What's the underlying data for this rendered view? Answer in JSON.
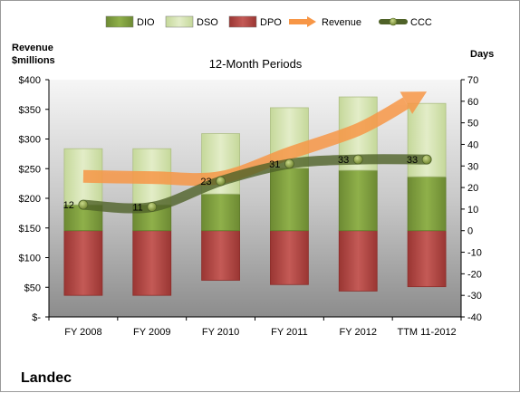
{
  "chart_data": {
    "type": "bar",
    "title": "12-Month Periods",
    "company": "Landec",
    "left_axis_label": [
      "Revenue",
      "$millions"
    ],
    "right_axis_label": "Days",
    "categories": [
      "FY 2008",
      "FY 2009",
      "FY 2010",
      "FY 2011",
      "FY 2012",
      "TTM 11-2012"
    ],
    "left_axis": {
      "min": 0,
      "max": 400,
      "step": 50,
      "ticks": [
        "$-",
        "$50",
        "$100",
        "$150",
        "$200",
        "$250",
        "$300",
        "$350",
        "$400"
      ]
    },
    "right_axis": {
      "min": -40,
      "max": 70,
      "step": 10,
      "ticks": [
        "-40",
        "-30",
        "-20",
        "-10",
        "0",
        "10",
        "20",
        "30",
        "40",
        "50",
        "60",
        "70"
      ]
    },
    "legend": [
      {
        "name": "DIO",
        "color": "#77933c"
      },
      {
        "name": "DSO",
        "color": "#d7e4bd"
      },
      {
        "name": "DPO",
        "color": "#c0504d"
      },
      {
        "name": "Revenue",
        "color": "#f79646"
      },
      {
        "name": "CCC",
        "color": "#4f6228"
      }
    ],
    "series": [
      {
        "name": "DIO",
        "axis": "right",
        "values": [
          12,
          12,
          17,
          29,
          28,
          25
        ]
      },
      {
        "name": "DSO",
        "axis": "right",
        "values": [
          26,
          26,
          28,
          28,
          34,
          34
        ]
      },
      {
        "name": "DPO",
        "axis": "right",
        "values": [
          -30,
          -30,
          -23,
          -25,
          -28,
          -26
        ]
      },
      {
        "name": "Revenue",
        "axis": "left",
        "values": [
          237,
          235,
          235,
          276,
          316,
          380
        ]
      },
      {
        "name": "CCC",
        "axis": "right",
        "values": [
          12,
          11,
          23,
          31,
          33,
          33
        ]
      }
    ],
    "ccc_labels": [
      "12",
      "11",
      "23",
      "31",
      "33",
      "33"
    ],
    "grid": false,
    "legend_position": "top"
  }
}
